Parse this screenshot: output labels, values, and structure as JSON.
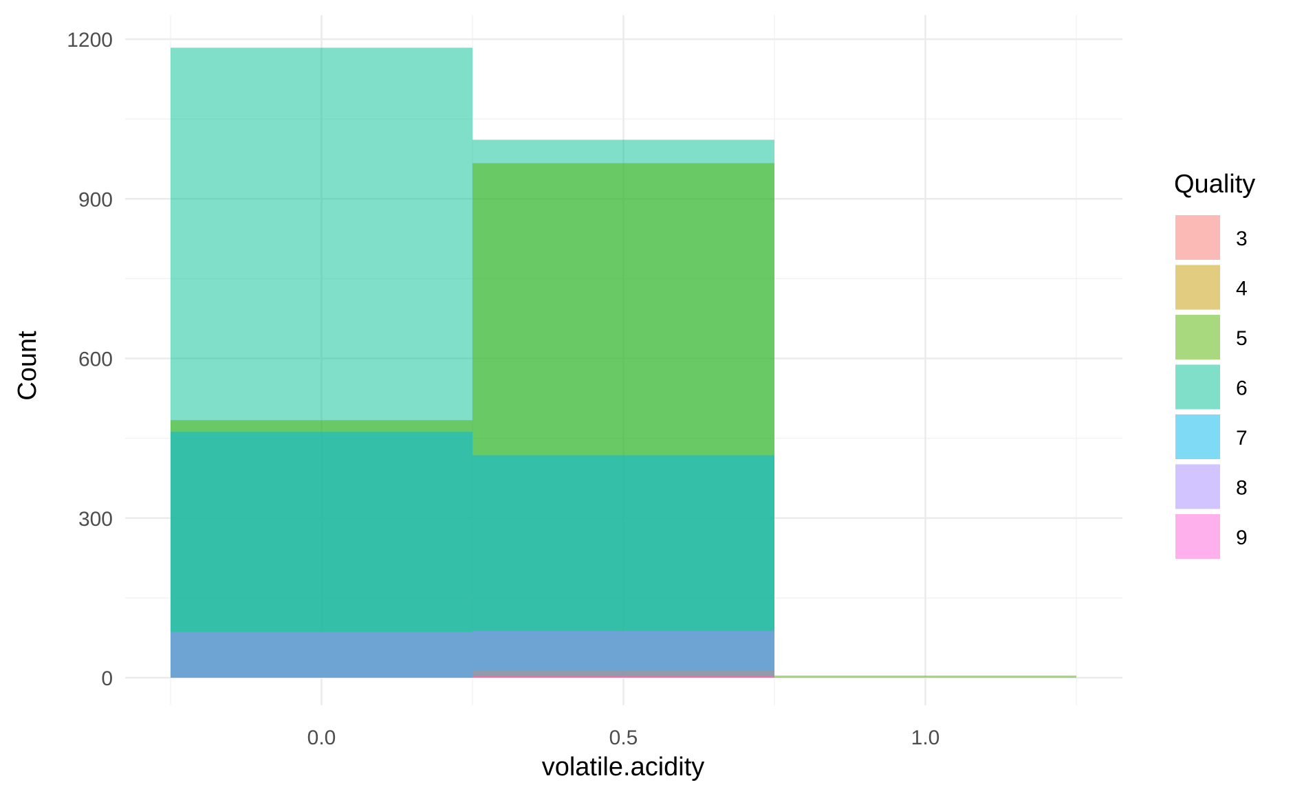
{
  "chart_data": {
    "type": "bar",
    "xlabel": "volatile.acidity",
    "ylabel": "Count",
    "xlim": [
      -0.25,
      1.25
    ],
    "ylim": [
      0,
      1200
    ],
    "x_ticks": [
      "0.0",
      "0.5",
      "1.0"
    ],
    "y_ticks": [
      "0",
      "300",
      "600",
      "900",
      "1200"
    ],
    "grid": true,
    "legend": {
      "title": "Quality",
      "position": "right"
    },
    "bin_width": 0.5,
    "categories": [
      "0.0",
      "0.5",
      "1.0"
    ],
    "series": [
      {
        "name": "3",
        "color": "#F8766D",
        "values": [
          0,
          4,
          0
        ]
      },
      {
        "name": "4",
        "color": "#C49A00",
        "values": [
          0,
          14,
          0
        ]
      },
      {
        "name": "5",
        "color": "#53B400",
        "values": [
          484,
          967,
          4
        ]
      },
      {
        "name": "6",
        "color": "#00C094",
        "values": [
          1184,
          1011,
          0
        ]
      },
      {
        "name": "7",
        "color": "#00B6EB",
        "values": [
          462,
          418,
          0
        ]
      },
      {
        "name": "8",
        "color": "#A58AFF",
        "values": [
          86,
          88,
          0
        ]
      },
      {
        "name": "9",
        "color": "#FB61D7",
        "values": [
          0,
          1,
          0
        ]
      }
    ],
    "draw_order": [
      "6",
      "5",
      "7",
      "4",
      "8",
      "3",
      "9"
    ]
  }
}
